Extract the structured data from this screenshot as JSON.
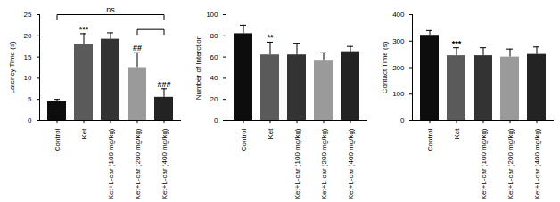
{
  "chart_data": [
    {
      "type": "bar",
      "y_label": "Latency Time (s)",
      "categories": [
        "Control",
        "Ket",
        "Ket+L-car (100 mg/kg)",
        "Ket+L-car (200 mg/kg)",
        "Ket+L-car (400 mg/kg)"
      ],
      "values": [
        4.5,
        18,
        19.2,
        12.5,
        5.5
      ],
      "errors": [
        0.5,
        2.5,
        1.5,
        3.5,
        2
      ],
      "colors": [
        "#0d0d0d",
        "#5a5a5a",
        "#333333",
        "#9a9a9a",
        "#232323"
      ],
      "ylim": [
        0,
        25
      ],
      "yticks": [
        0,
        5,
        10,
        15,
        20,
        25
      ],
      "annotations": [
        {
          "category": "Ket",
          "text": "***"
        },
        {
          "category": "Ket+L-car (200 mg/kg)",
          "text": "##"
        },
        {
          "category": "Ket+L-car (400 mg/kg)",
          "text": "###"
        }
      ],
      "brackets": [
        {
          "from": "Control",
          "to": "Ket+L-car (400 mg/kg)",
          "text": "ns"
        },
        {
          "from": "Ket+L-car (200 mg/kg)",
          "to": "Ket+L-car (400 mg/kg)"
        }
      ]
    },
    {
      "type": "bar",
      "y_label": "Number of Interction",
      "categories": [
        "Control",
        "Ket",
        "Ket+L-car (100 mg/kg)",
        "Ket+L-car (200 mg/kg)",
        "Ket+L-car (400 mg/kg)"
      ],
      "values": [
        82,
        62,
        62,
        57,
        65
      ],
      "errors": [
        8,
        12,
        11,
        7,
        5
      ],
      "colors": [
        "#0d0d0d",
        "#5a5a5a",
        "#333333",
        "#9a9a9a",
        "#232323"
      ],
      "ylim": [
        0,
        100
      ],
      "yticks": [
        0,
        20,
        40,
        60,
        80,
        100
      ],
      "annotations": [
        {
          "category": "Ket",
          "text": "**"
        }
      ]
    },
    {
      "type": "bar",
      "y_label": "Contact Time (s)",
      "categories": [
        "Control",
        "Ket",
        "Ket+L-car (100 mg/kg)",
        "Ket+L-car (200 mg/kg)",
        "Ket+L-car (400 mg/kg)"
      ],
      "values": [
        322,
        245,
        245,
        240,
        250
      ],
      "errors": [
        18,
        30,
        30,
        30,
        28
      ],
      "colors": [
        "#0d0d0d",
        "#5a5a5a",
        "#333333",
        "#9a9a9a",
        "#232323"
      ],
      "ylim": [
        0,
        400
      ],
      "yticks": [
        0,
        100,
        200,
        300,
        400
      ],
      "annotations": [
        {
          "category": "Ket",
          "text": "***"
        }
      ]
    }
  ]
}
